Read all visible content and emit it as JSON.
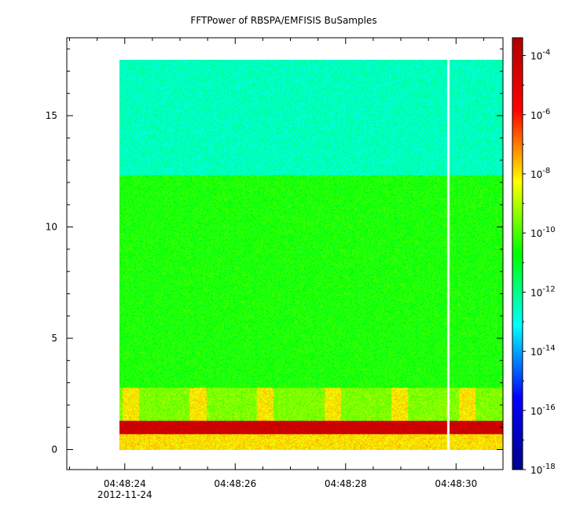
{
  "chart_data": {
    "type": "heatmap",
    "title": "FFTPower of RBSPA/EMFISIS  BuSamples",
    "xlabel": "",
    "ylabel": "",
    "x_ticks": [
      {
        "label": "04:48:24",
        "sub": "2012-11-24",
        "t": 24
      },
      {
        "label": "04:48:26",
        "sub": "",
        "t": 26
      },
      {
        "label": "04:48:28",
        "sub": "",
        "t": 28
      },
      {
        "label": "04:48:30",
        "sub": "",
        "t": 30
      }
    ],
    "xlim": [
      22.95,
      30.85
    ],
    "data_x_range": [
      23.9,
      30.85
    ],
    "gap_at": 29.85,
    "ylim": [
      -0.9,
      18.5
    ],
    "data_y_range": [
      0,
      17.5
    ],
    "y_ticks": [
      0,
      5,
      10,
      15
    ],
    "colorbar": {
      "scale": "log",
      "range_exp": [
        -18,
        -3.4
      ],
      "tick_exps": [
        -18,
        -16,
        -14,
        -12,
        -10,
        -8,
        -6,
        -4
      ],
      "tick_labels": [
        "10",
        "10",
        "10",
        "10",
        "10",
        "10",
        "10",
        "10"
      ],
      "tick_exponents": [
        "-18",
        "-16",
        "-14",
        "-12",
        "-10",
        "-8",
        "-6",
        "-4"
      ],
      "colors": [
        "#00008b",
        "#0000ff",
        "#00ffff",
        "#00ff00",
        "#ffff00",
        "#ff0000",
        "#b00000"
      ]
    },
    "bands": [
      {
        "y_from": 12.3,
        "y_to": 17.5,
        "level_exp": -12.5,
        "desc": "upper band"
      },
      {
        "y_from": 2.8,
        "y_to": 12.3,
        "level_exp": -10.5,
        "desc": "middle band"
      },
      {
        "y_from": 1.3,
        "y_to": 2.8,
        "level_exp": -9.0,
        "desc": "upper low-frequency band"
      },
      {
        "y_from": 0.7,
        "y_to": 1.3,
        "level_exp": -4.3,
        "desc": "intense line"
      },
      {
        "y_from": 0,
        "y_to": 0.7,
        "level_exp": -8.0,
        "desc": "bottom band"
      }
    ]
  }
}
